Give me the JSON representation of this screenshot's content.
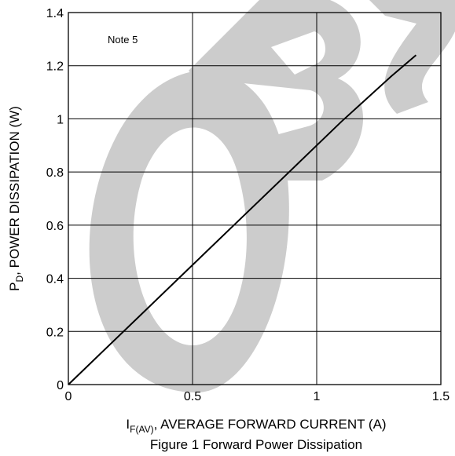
{
  "chart_data": {
    "type": "line",
    "xlabel": {
      "main": "I",
      "sub": "F(AV)",
      "rest": ", AVERAGE FORWARD CURRENT (A)"
    },
    "ylabel": {
      "main": "P",
      "sub": "D",
      "rest": ", POWER DISSIPATION (W)"
    },
    "caption": "Figure 1  Forward Power Dissipation",
    "annotation": "Note 5",
    "watermark": "OBS",
    "xlim": [
      0,
      1.5
    ],
    "ylim": [
      0,
      1.4
    ],
    "x_ticks": [
      0,
      0.5,
      1,
      1.5
    ],
    "x_tick_labels": [
      "0",
      "0.5",
      "1",
      "1.5"
    ],
    "y_ticks": [
      0,
      0.2,
      0.4,
      0.6,
      0.8,
      1.0,
      1.2,
      1.4
    ],
    "y_tick_labels": [
      "0",
      "0.2",
      "0.4",
      "0.6",
      "0.8",
      "1",
      "1.2",
      "1.4"
    ],
    "grid": true,
    "series": [
      {
        "x": [
          0,
          0.1,
          0.3,
          0.5,
          0.7,
          0.9,
          1.1,
          1.3,
          1.35,
          1.4
        ],
        "y": [
          0,
          0.09,
          0.27,
          0.45,
          0.63,
          0.81,
          0.99,
          1.16,
          1.2,
          1.24
        ],
        "color": "#000000"
      }
    ]
  }
}
